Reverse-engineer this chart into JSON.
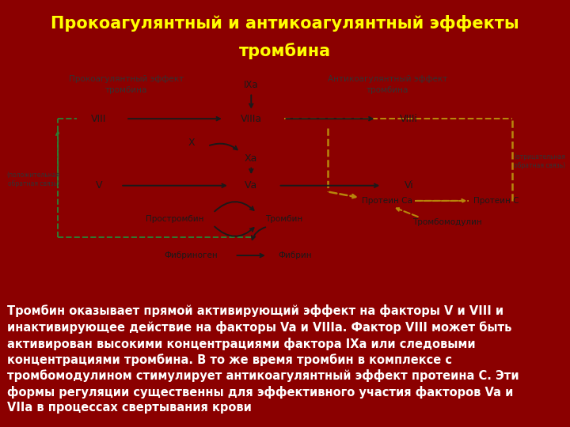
{
  "title_line1": "Прокоагулянтный и антикоагулянтный эффекты",
  "title_line2": "тромбина",
  "title_color": "#FFFF00",
  "title_bg": "#8B0000",
  "diagram_bg": "#CDD2D9",
  "body_bg": "#7A0000",
  "body_text_color": "#FFFFFF",
  "body_text": "Тромбин оказывает прямой активирующий эффект на факторы V и VIII и\nинактивирующее действие на факторы Va и VIIIa. Фактор VIII может быть\nактивирован высокими концентрациями фактора IXа или следовыми\nконцентрациями тромбина. В то же время тромбин в комплексе с\nтромбомодулином стимулирует антикоагулянтный эффект протеина С. Эти\nформы регуляции существенны для эффективного участия факторов Va и\nVIIa в процессах свертывания крови",
  "body_text_fontsize": 10.5,
  "title_fontsize": 15,
  "dark": "#1a1a1a",
  "green": "#2E7D32",
  "yellow": "#B8860B"
}
